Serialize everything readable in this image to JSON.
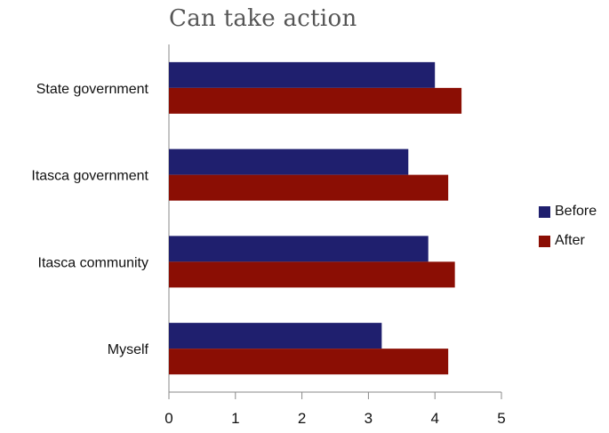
{
  "chart_data": {
    "type": "bar",
    "orientation": "horizontal",
    "title": "Can take action",
    "categories": [
      "State government",
      "Itasca government",
      "Itasca community",
      "Myself"
    ],
    "series": [
      {
        "name": "Before",
        "color": "#1f1f6e",
        "values": [
          4.0,
          3.6,
          3.9,
          3.2
        ]
      },
      {
        "name": "After",
        "color": "#8b0e04",
        "values": [
          4.4,
          4.2,
          4.3,
          4.2
        ]
      }
    ],
    "xlim": [
      0,
      5
    ],
    "xticks": [
      "0",
      "1",
      "2",
      "3",
      "4",
      "5"
    ],
    "xlabel": "",
    "ylabel": "",
    "grid": false,
    "legend_position": "right"
  }
}
